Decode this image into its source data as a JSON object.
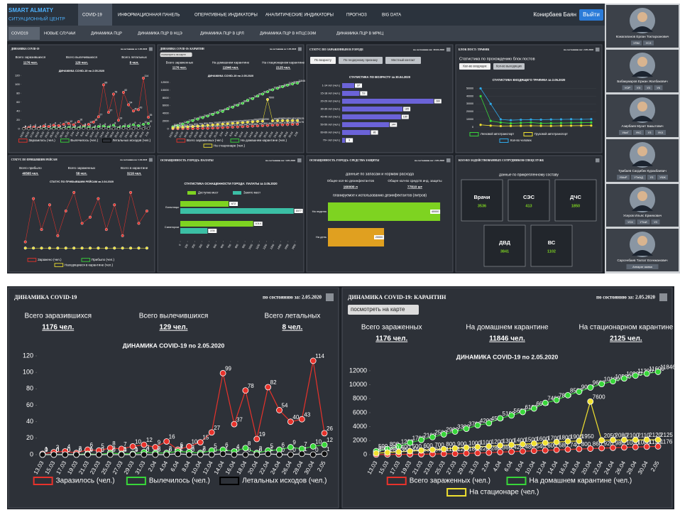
{
  "nav": {
    "brand": "SMART ALMATY",
    "subtitle": "СИТУАЦИОННЫЙ ЦЕНТР",
    "items": [
      "COVID-19",
      "ИНФОРМАЦИОННАЯ ПАНЕЛЬ",
      "ОПЕРАТИВНЫЕ ИНДИКАТОРЫ",
      "АНАЛИТИЧЕСКИЕ ИНДИКАТОРЫ",
      "ПРОГНОЗ",
      "BIG DATA"
    ],
    "user": "Конирбаев Баян",
    "logout": "Выйти"
  },
  "subnav": [
    "COVID19",
    "НОВЫЕ СЛУЧАИ",
    "ДИНАМИКА ПЦР",
    "ДИНАМИКА ПЦР В НЦЭ",
    "ДИНАМИКА ПЦР В ЦРЛ",
    "ДИНАМИКА ПЦР В НПЦСЭЭМ",
    "ДИНАМИКА ПЦР В МРКЦ"
  ],
  "sidebar": [
    {
      "name": "Кожагапанов Ерлан Токтарханович",
      "tags": [
        "УПМ",
        "УСЗ"
      ]
    },
    {
      "name": "Бабакумаров Ержан Жалбакович",
      "tags": [
        "УОР",
        "УЭ",
        "УЗ",
        "УК"
      ]
    },
    {
      "name": "Азирбаев Мухит Бакытович",
      "tags": [
        "УАиГ",
        "УКС",
        "УЗ",
        "УКХ"
      ]
    },
    {
      "name": "Тумбаев Сагдибек Куракбаевич",
      "tags": [
        "УМиР",
        "УТиАД",
        "УЗ",
        "УКЖ"
      ]
    },
    {
      "name": "Усеров Ильяс Ермекович",
      "tags": [
        "УСХ",
        "УТиИ",
        "УЗ"
      ]
    },
    {
      "name": "Сарсенбаев Талгат Есенжанович",
      "tags": [
        "Аппарат акима"
      ]
    }
  ],
  "panels": {
    "covid": {
      "title": "ДИНАМИКА COVID-19",
      "date": "по состоянию за: 2.05.2020",
      "stats": [
        {
          "label": "Всего заразившихся",
          "value": "1176 чел."
        },
        {
          "label": "Всего вылечившихся",
          "value": "129 чел."
        },
        {
          "label": "Всего летальных",
          "value": "8 чел."
        }
      ],
      "chart": {
        "type": "line",
        "title": "ДИНАМИКА COVID-19 по 2.05.2020",
        "data_labels": true,
        "categories": [
          "13.03",
          "15.03",
          "17.03",
          "19.03",
          "21.03",
          "23.03",
          "25.03",
          "27.03",
          "29.03",
          "31.03",
          "2.04",
          "4.04",
          "6.04",
          "8.04",
          "10.04",
          "12.04",
          "14.04",
          "16.04",
          "18.04",
          "20.04",
          "22.04",
          "24.04",
          "26.04",
          "28.04",
          "30.04",
          "2.05"
        ],
        "ylim": [
          0,
          120
        ],
        "yticks": [
          0,
          20,
          40,
          60,
          80,
          100,
          120
        ],
        "series": [
          {
            "name": "Заразилось (чел.)",
            "color": "#e8322b",
            "values": [
              1,
              3,
              4,
              2,
              6,
              5,
              8,
              7,
              10,
              12,
              9,
              16,
              6,
              10,
              15,
              27,
              99,
              37,
              78,
              19,
              82,
              54,
              40,
              43,
              114,
              26
            ]
          },
          {
            "name": "Вылечилось (чел.)",
            "color": "#38d63a",
            "values": [
              0,
              0,
              0,
              0,
              1,
              0,
              2,
              1,
              1,
              3,
              2,
              2,
              4,
              3,
              2,
              5,
              6,
              4,
              8,
              2,
              5,
              6,
              9,
              7,
              10,
              12
            ]
          },
          {
            "name": "Летальных исходов (чел.)",
            "color": "#111111",
            "values": [
              0,
              0,
              0,
              0,
              0,
              0,
              0,
              0,
              0,
              0,
              0,
              0,
              1,
              0,
              0,
              0,
              1,
              0,
              0,
              0,
              1,
              0,
              0,
              1,
              0,
              1
            ]
          }
        ]
      }
    },
    "quarantine": {
      "title": "ДИНАМИКА COVID-19: КАРАНТИН",
      "date": "по состоянию за: 2.05.2020",
      "button": "посмотреть на карте",
      "stats": [
        {
          "label": "Всего зараженных",
          "value": "1176 чел."
        },
        {
          "label": "На домашнем карантине",
          "value": "11846 чел."
        },
        {
          "label": "На стационарном карантине",
          "value": "2125 чел."
        }
      ],
      "chart": {
        "type": "line",
        "title": "ДИНАМИКА COVID-19 по 2.05.2020",
        "data_labels": true,
        "categories": [
          "13.03",
          "15.03",
          "17.03",
          "19.03",
          "21.03",
          "23.03",
          "25.03",
          "27.03",
          "29.03",
          "31.03",
          "2.04",
          "4.04",
          "6.04",
          "8.04",
          "10.04",
          "12.04",
          "14.04",
          "16.04",
          "18.04",
          "20.04",
          "22.04",
          "24.04",
          "26.04",
          "28.04",
          "30.04",
          "2.05"
        ],
        "ylim": [
          0,
          12500
        ],
        "yticks": [
          0,
          2000,
          4000,
          6000,
          8000,
          10000,
          12000
        ],
        "series": [
          {
            "name": "Всего зараженных (чел.)",
            "color": "#e8322b",
            "values": [
              9,
              20,
              36,
              44,
              53,
              84,
              111,
              125,
              180,
              220,
              280,
              360,
              420,
              480,
              540,
              600,
              680,
              740,
              800,
              860,
              920,
              980,
              1030,
              1080,
              1130,
              1176
            ]
          },
          {
            "name": "На домашнем карантине (чел.)",
            "color": "#38d63a",
            "values": [
              500,
              800,
              1200,
              1700,
              2100,
              2500,
              2900,
              3300,
              3700,
              4200,
              4500,
              5199,
              5600,
              6100,
              6600,
              7400,
              7800,
              8500,
              9000,
              9600,
              10100,
              10500,
              10900,
              11300,
              11600,
              11846
            ]
          },
          {
            "name": "На стационаре (чел.)",
            "color": "#f0e130",
            "values": [
              200,
              300,
              400,
              500,
              600,
              700,
              800,
              900,
              1000,
              1100,
              1200,
              1300,
              1400,
              1500,
              1600,
              1700,
              1800,
              1900,
              1950,
              7600,
              2050,
              2080,
              2100,
              2110,
              2120,
              2125
            ]
          }
        ]
      }
    },
    "infected": {
      "title": "СТАТУС ПО ЗАРАЖЕННЫМ В ГОРОДЕ",
      "date": "по состоянию на: 30.04.2020",
      "buttons": [
        "По возрасту",
        "По гендерному признаку",
        "Местный контакт"
      ],
      "chart": {
        "type": "bar",
        "title": "СТАТИСТИКА ПО ВОЗРАСТУ за 30.04.2020",
        "color": "#6b63d8",
        "categories": [
          "1-14 лет (чел.)",
          "15-18 лет (чел.)",
          "20-29 лет (чел.)",
          "30-39 лет (чел.)",
          "40-49 лет (чел.)",
          "50-59 лет (чел.)",
          "60-69 лет (чел.)",
          "70+ лет (чел.)"
        ],
        "values": [
          37,
          53,
          280,
          185,
          180,
          144,
          86,
          9
        ],
        "xlim": [
          0,
          300
        ]
      }
    },
    "traffic": {
      "title": "БЛОК ПОСТ: ТРАФИК",
      "date": "по состоянию на: 2.05.2020",
      "subtitle": "Статистика по прохождению блок постов",
      "buttons": [
        "Кол-во входящих",
        "Кол-во выходящих"
      ],
      "chart": {
        "type": "line",
        "title": "СТАТИСТИКА ВХОДЯЩЕГО ТРАФИКА за 2.05.2020",
        "ylim": [
          0,
          55000
        ],
        "yticks": [
          0,
          10000,
          20000,
          30000,
          40000,
          50000
        ],
        "series": [
          {
            "name": "Легковой автотранспорт",
            "color": "#38d63a",
            "values": [
              40000,
              8000,
              6000,
              5000,
              5500,
              6000,
              5000,
              5200,
              5400,
              5600,
              5800,
              6000
            ]
          },
          {
            "name": "Грузовой автотранспорт",
            "color": "#f0e130",
            "values": [
              3000,
              2000,
              1500,
              1600,
              1700,
              1800,
              1700,
              1600,
              1800,
              1900,
              2000,
              2100
            ]
          },
          {
            "name": "Кол-во человек",
            "color": "#2fa8e8",
            "values": [
              50000,
              30000,
              10000,
              9000,
              9500,
              9800,
              9600,
              9900,
              10000,
              10200,
              10100,
              10300
            ]
          }
        ]
      }
    },
    "flights": {
      "title": "СТАТУС ПО ПРИБЫВШИМ РЕЙСАМ",
      "date": "по состоянию на: 2.04.2020",
      "stats": [
        {
          "label": "Всего прибыло",
          "value": "40565 чел."
        },
        {
          "label": "Всего зараженных",
          "value": "58 чел."
        },
        {
          "label": "Всего в карантине",
          "value": "3216 чел."
        }
      ],
      "chart": {
        "type": "line",
        "title": "СТАТУС ПО ПРИБЫВШИМ РЕЙСАМ за 2.04.2020",
        "ylim": [
          0,
          10
        ],
        "series": [
          {
            "name": "Заражено (чел.)",
            "color": "#e8322b",
            "values": [
              1,
              8,
              3,
              7,
              2,
              6,
              9,
              4,
              5,
              8,
              3,
              7,
              2,
              9,
              4,
              6
            ]
          },
          {
            "name": "Прибыло (чел.)",
            "color": "#38d63a",
            "values": [
              0,
              0,
              0,
              0,
              0,
              0,
              0,
              0,
              0,
              0,
              0,
              0,
              0,
              0,
              0,
              0
            ]
          },
          {
            "name": "Находящиеся в карантине (чел.)",
            "color": "#f0e130",
            "values": [
              0,
              0,
              0,
              0,
              0,
              0,
              0,
              0,
              0,
              0,
              0,
              0,
              0,
              0,
              0,
              0
            ]
          }
        ]
      }
    },
    "beds": {
      "title": "ОСНАЩЕННОСТЬ ГОРОДА: ПАЛАТЫ",
      "date": "по состоянию на: 3.05.2020",
      "chart": {
        "type": "bar",
        "title": "СТАТИСТИКА ОСНАЩЕННОСТИ ГОРОДА: ПАЛАТЫ за 3.05.2020",
        "categories": [
          "Больницы",
          "Санатории"
        ],
        "xlim": [
          0,
          1600
        ],
        "xticks": [
          0,
          100,
          200,
          300,
          400,
          500,
          600,
          700,
          800,
          900,
          1000,
          1100,
          1200,
          1300,
          1400,
          1500,
          1600
        ],
        "series": [
          {
            "name": "Доступно мест",
            "color": "#7ed321",
            "values": [
              672,
              1014
            ]
          },
          {
            "name": "Занято мест",
            "color": "#3bbfa5",
            "values": [
              1577,
              378
            ]
          }
        ]
      }
    },
    "protection": {
      "title": "ОСНАЩЕННОСТЬ ГОРОДА: СРЕДСТВА ЗАЩИТЫ",
      "date": "по состоянию на: 2.05.2020",
      "subtitle": "данные по запасам и нормам расхода",
      "stats": [
        {
          "label": "Общее кол-во дезинфектантов",
          "value": "160000 л"
        },
        {
          "label": "Общее кол-во средств инд. защиты",
          "value": "77810 шт"
        }
      ],
      "chart": {
        "type": "bar",
        "title": "планируемое к использованию дезинфектантов (литров)",
        "categories": [
          "На неделю",
          "На день"
        ],
        "values": [
          40000,
          20000
        ],
        "colors": [
          "#7ed321",
          "#e0a020"
        ],
        "xlim": [
          0,
          42000
        ]
      }
    },
    "staff": {
      "title": "КОЛ-ВО ЗАДЕЙСТВОВАННЫХ СОТРУДНИКОВ СПЕЦСЛУЖБ",
      "subtitle": "данные по прикрепленному составу",
      "units": [
        {
          "label": "Врачи",
          "value": "3536"
        },
        {
          "label": "СЭС",
          "value": "413"
        },
        {
          "label": "ДЧС",
          "value": "1850"
        },
        {
          "label": "ДВД",
          "value": "3841"
        },
        {
          "label": "ВС",
          "value": "1102"
        }
      ]
    }
  }
}
